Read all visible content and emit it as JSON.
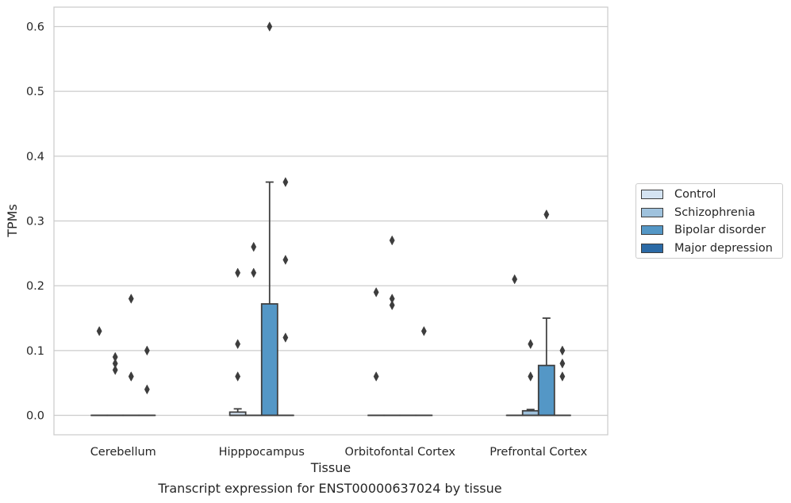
{
  "chart_data": {
    "type": "box",
    "title": "Transcript expression for ENST00000637024 by tissue",
    "xlabel": "Tissue",
    "ylabel": "TPMs",
    "ylim": [
      -0.03,
      0.63
    ],
    "yticks": [
      "0.0",
      "0.1",
      "0.2",
      "0.3",
      "0.4",
      "0.5",
      "0.6"
    ],
    "grid": true,
    "legend_position": "right",
    "categories": [
      "Cerebellum",
      "Hipppocampus",
      "Orbitofontal Cortex",
      "Prefrontal Cortex"
    ],
    "series": [
      {
        "name": "Control",
        "color": "#d4e3f2",
        "boxes": [
          {
            "q1": 0,
            "median": 0,
            "q3": 0,
            "whisker_low": 0,
            "whisker_high": 0,
            "outliers": [
              0.13
            ]
          },
          {
            "q1": 0,
            "median": 0,
            "q3": 0.005,
            "whisker_low": 0,
            "whisker_high": 0.01,
            "outliers": [
              0.06,
              0.11,
              0.22
            ]
          },
          {
            "q1": 0,
            "median": 0,
            "q3": 0,
            "whisker_low": 0,
            "whisker_high": 0,
            "outliers": [
              0.06,
              0.19
            ]
          },
          {
            "q1": 0,
            "median": 0,
            "q3": 0,
            "whisker_low": 0,
            "whisker_high": 0,
            "outliers": [
              0.21
            ]
          }
        ]
      },
      {
        "name": "Schizophrenia",
        "color": "#9fc2dd",
        "boxes": [
          {
            "q1": 0,
            "median": 0,
            "q3": 0,
            "whisker_low": 0,
            "whisker_high": 0,
            "outliers": [
              0.07,
              0.08,
              0.09
            ]
          },
          {
            "q1": 0,
            "median": 0,
            "q3": 0,
            "whisker_low": 0,
            "whisker_high": 0,
            "outliers": [
              0.22,
              0.26
            ]
          },
          {
            "q1": 0,
            "median": 0,
            "q3": 0,
            "whisker_low": 0,
            "whisker_high": 0,
            "outliers": [
              0.17,
              0.18,
              0.27
            ]
          },
          {
            "q1": 0,
            "median": 0,
            "q3": 0.007,
            "whisker_low": 0,
            "whisker_high": 0.009,
            "outliers": [
              0.06,
              0.11
            ]
          }
        ]
      },
      {
        "name": "Bipolar disorder",
        "color": "#5497c6",
        "boxes": [
          {
            "q1": 0,
            "median": 0,
            "q3": 0,
            "whisker_low": 0,
            "whisker_high": 0,
            "outliers": [
              0.06,
              0.06,
              0.18
            ]
          },
          {
            "q1": 0,
            "median": 0,
            "q3": 0.172,
            "whisker_low": 0,
            "whisker_high": 0.36,
            "outliers": [
              0.6
            ]
          },
          {
            "q1": 0,
            "median": 0,
            "q3": 0,
            "whisker_low": 0,
            "whisker_high": 0,
            "outliers": []
          },
          {
            "q1": 0,
            "median": 0,
            "q3": 0.077,
            "whisker_low": 0,
            "whisker_high": 0.15,
            "outliers": [
              0.31
            ]
          }
        ]
      },
      {
        "name": "Major depression",
        "color": "#2b6aa6",
        "boxes": [
          {
            "q1": 0,
            "median": 0,
            "q3": 0,
            "whisker_low": 0,
            "whisker_high": 0,
            "outliers": [
              0.04,
              0.1
            ]
          },
          {
            "q1": 0,
            "median": 0,
            "q3": 0,
            "whisker_low": 0,
            "whisker_high": 0,
            "outliers": [
              0.12,
              0.24,
              0.36
            ]
          },
          {
            "q1": 0,
            "median": 0,
            "q3": 0,
            "whisker_low": 0,
            "whisker_high": 0,
            "outliers": [
              0.13
            ]
          },
          {
            "q1": 0,
            "median": 0,
            "q3": 0,
            "whisker_low": 0,
            "whisker_high": 0,
            "outliers": [
              0.06,
              0.08,
              0.1
            ]
          }
        ]
      }
    ]
  }
}
